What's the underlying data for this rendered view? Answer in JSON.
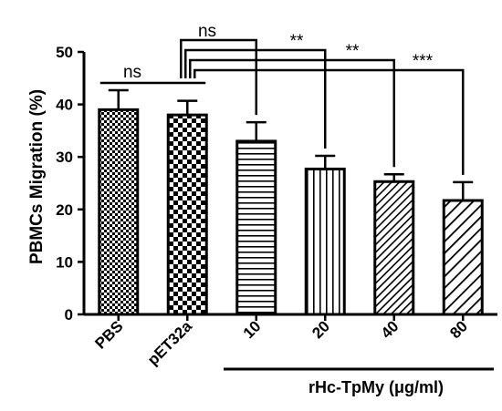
{
  "chart_data": {
    "type": "bar",
    "title": "",
    "xlabel": "",
    "ylabel": "PBMCs Migration (%)",
    "ylim": [
      0,
      50
    ],
    "yticks": [
      0,
      10,
      20,
      30,
      40,
      50
    ],
    "grid": false,
    "legend": "none",
    "categories": [
      "PBS",
      "pET32a",
      "10",
      "20",
      "40",
      "80"
    ],
    "values": [
      39.0,
      38.0,
      33.0,
      27.7,
      25.3,
      21.7
    ],
    "errors": [
      3.7,
      2.7,
      3.6,
      2.5,
      1.4,
      3.5
    ],
    "fill_patterns": [
      "checker-fine",
      "checker-coarse",
      "horizontal-lines",
      "vertical-lines",
      "diagonal-fine",
      "diagonal-coarse"
    ],
    "group_label": "rHc-TpMy (μg/ml)",
    "group_categories": [
      "10",
      "20",
      "40",
      "80"
    ],
    "comparisons": [
      {
        "from": "PBS",
        "to": "pET32a",
        "label": "ns"
      },
      {
        "from": "pET32a",
        "to": "10",
        "label": "ns"
      },
      {
        "from": "pET32a",
        "to": "20",
        "label": "**"
      },
      {
        "from": "pET32a",
        "to": "40",
        "label": "**"
      },
      {
        "from": "pET32a",
        "to": "80",
        "label": "***"
      }
    ],
    "colors": {
      "ink": "#000000",
      "fill": "#ffffff"
    }
  }
}
